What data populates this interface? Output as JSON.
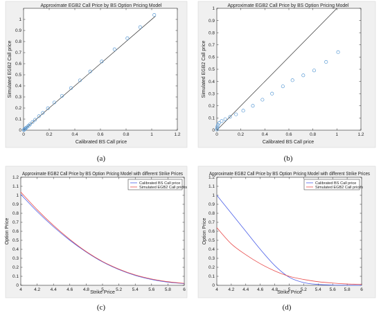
{
  "chart_data": [
    {
      "panel": "a",
      "type": "scatter",
      "title": "Approximate EGB2 Call Price by BS Option Pricing Model",
      "xlabel": "Calibrated BS Call price",
      "ylabel": "Simulated EGB2 Call price",
      "xlim": [
        0,
        1.2
      ],
      "ylim": [
        0,
        1.1
      ],
      "xticks": [
        "0",
        "0.2",
        "0.4",
        "0.6",
        "0.8",
        "1",
        "1.2"
      ],
      "yticks": [
        "0",
        "0.1",
        "0.2",
        "0.3",
        "0.4",
        "0.5",
        "0.6",
        "0.7",
        "0.8",
        "0.9",
        "1"
      ],
      "reference_line": [
        [
          0,
          0
        ],
        [
          1.03,
          1.03
        ]
      ],
      "caption": "(a)",
      "colors": {
        "marker": "#5b9bd5",
        "line": "#333333"
      },
      "series": [
        {
          "x": [
            0.002,
            0.005,
            0.01,
            0.015,
            0.02,
            0.03,
            0.04,
            0.05,
            0.07,
            0.09,
            0.12,
            0.15,
            0.19,
            0.24,
            0.3,
            0.37,
            0.44,
            0.52,
            0.61,
            0.71,
            0.81,
            0.91,
            1.02
          ],
          "y": [
            0.002,
            0.005,
            0.011,
            0.016,
            0.021,
            0.031,
            0.041,
            0.052,
            0.073,
            0.094,
            0.126,
            0.156,
            0.198,
            0.25,
            0.31,
            0.38,
            0.45,
            0.53,
            0.62,
            0.73,
            0.83,
            0.93,
            1.04
          ]
        }
      ]
    },
    {
      "panel": "b",
      "type": "scatter",
      "title": "Approximate EGB2 Call Price by BS Option Pricing Model",
      "xlabel": "Calibrated BS Call price",
      "ylabel": "Simulated EGB2 Call price",
      "xlim": [
        0,
        1.2
      ],
      "ylim": [
        0,
        1
      ],
      "xticks": [
        "0",
        "0.2",
        "0.4",
        "0.6",
        "0.8",
        "1",
        "1.2"
      ],
      "yticks": [
        "0",
        "0.1",
        "0.2",
        "0.3",
        "0.4",
        "0.5",
        "0.6",
        "0.7",
        "0.8",
        "0.9",
        "1"
      ],
      "reference_line": [
        [
          0,
          0
        ],
        [
          1.0,
          1.0
        ]
      ],
      "caption": "(b)",
      "colors": {
        "marker": "#5b9bd5",
        "line": "#333333"
      },
      "series": [
        {
          "x": [
            0.0,
            0.002,
            0.005,
            0.01,
            0.02,
            0.04,
            0.07,
            0.11,
            0.16,
            0.22,
            0.3,
            0.38,
            0.46,
            0.55,
            0.63,
            0.72,
            0.81,
            0.91,
            1.01
          ],
          "y": [
            0.005,
            0.015,
            0.03,
            0.045,
            0.06,
            0.075,
            0.09,
            0.11,
            0.13,
            0.16,
            0.2,
            0.25,
            0.3,
            0.36,
            0.41,
            0.45,
            0.49,
            0.56,
            0.64
          ]
        }
      ]
    },
    {
      "panel": "c",
      "type": "line",
      "title": "Approximate EGB2 Call Price by BS Option Pricing Model with different Strike Prices",
      "xlabel": "Strike Price",
      "ylabel": "Option Price",
      "xlim": [
        4,
        6
      ],
      "ylim": [
        0,
        1.2
      ],
      "xticks": [
        "4",
        "4.2",
        "4.4",
        "4.6",
        "4.8",
        "5",
        "5.2",
        "5.4",
        "5.6",
        "5.8",
        "6"
      ],
      "yticks": [
        "0",
        "0.1",
        "0.2",
        "0.3",
        "0.4",
        "0.5",
        "0.6",
        "0.7",
        "0.8",
        "0.9",
        "1",
        "1.1",
        "1.2"
      ],
      "legend": "top-right",
      "caption": "(c)",
      "x": [
        4.0,
        4.2,
        4.4,
        4.6,
        4.8,
        5.0,
        5.2,
        5.4,
        5.6,
        5.8,
        6.0
      ],
      "series": [
        {
          "name": "Calibrated BS Call price",
          "color": "#4a5ee8",
          "values": [
            1.01,
            0.82,
            0.65,
            0.5,
            0.37,
            0.26,
            0.175,
            0.11,
            0.065,
            0.035,
            0.018
          ]
        },
        {
          "name": "Simulated EGB2 Call prices",
          "color": "#e84a4a",
          "values": [
            1.035,
            0.84,
            0.665,
            0.51,
            0.375,
            0.265,
            0.18,
            0.115,
            0.07,
            0.04,
            0.022
          ]
        }
      ]
    },
    {
      "panel": "d",
      "type": "line",
      "title": "Approximate EGB2 Call Price by BS Option Pricing Model with different Strike Prices",
      "xlabel": "Strike Price",
      "ylabel": "Option Price",
      "xlim": [
        4,
        6
      ],
      "ylim": [
        0,
        1.2
      ],
      "xticks": [
        "4",
        "4.2",
        "4.4",
        "4.6",
        "4.8",
        "5",
        "5.2",
        "5.4",
        "5.6",
        "5.8",
        "6"
      ],
      "yticks": [
        "0",
        "0.1",
        "0.2",
        "0.3",
        "0.4",
        "0.5",
        "0.6",
        "0.7",
        "0.8",
        "0.9",
        "1",
        "1.1",
        "1.2"
      ],
      "legend": "top-right",
      "caption": "(d)",
      "x": [
        4.0,
        4.2,
        4.4,
        4.6,
        4.8,
        5.0,
        5.2,
        5.4,
        5.6,
        5.8,
        6.0
      ],
      "series": [
        {
          "name": "Calibrated BS Call price",
          "color": "#4a5ee8",
          "values": [
            1.0,
            0.8,
            0.6,
            0.4,
            0.22,
            0.09,
            0.03,
            0.01,
            0.003,
            0.001,
            0.0
          ]
        },
        {
          "name": "Simulated EGB2 Call prices",
          "color": "#e84a4a",
          "values": [
            0.64,
            0.46,
            0.34,
            0.24,
            0.16,
            0.1,
            0.065,
            0.04,
            0.025,
            0.015,
            0.01
          ]
        }
      ]
    }
  ]
}
